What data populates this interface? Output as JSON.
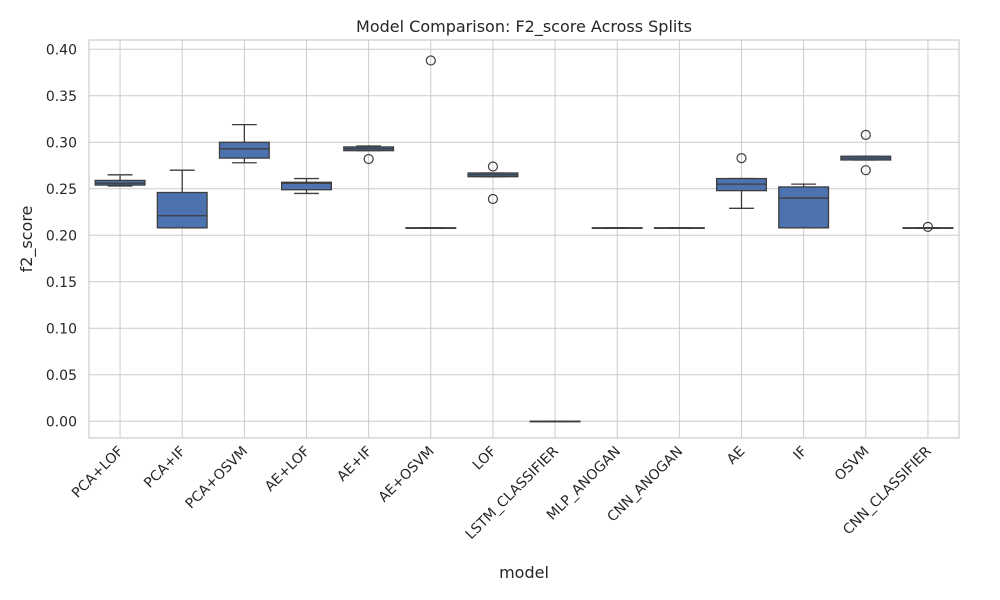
{
  "chart_data": {
    "type": "box",
    "title": "Model Comparison: F2_score Across Splits",
    "xlabel": "model",
    "ylabel": "f2_score",
    "ylim": [
      -0.018,
      0.41
    ],
    "yticks": [
      0.0,
      0.05,
      0.1,
      0.15,
      0.2,
      0.25,
      0.3,
      0.35,
      0.4
    ],
    "ytick_labels": [
      "0.00",
      "0.05",
      "0.10",
      "0.15",
      "0.20",
      "0.25",
      "0.30",
      "0.35",
      "0.40"
    ],
    "grid": true,
    "box_color": "#4c72b0",
    "edge_color": "#3d3d3d",
    "categories": [
      "PCA+LOF",
      "PCA+IF",
      "PCA+OSVM",
      "AE+LOF",
      "AE+IF",
      "AE+OSVM",
      "LOF",
      "LSTM_CLASSIFIER",
      "MLP_ANOGAN",
      "CNN_ANOGAN",
      "AE",
      "IF",
      "OSVM",
      "CNN_CLASSIFIER"
    ],
    "boxes": [
      {
        "q1": 0.254,
        "median": 0.256,
        "q3": 0.259,
        "whisker_low": 0.253,
        "whisker_high": 0.265,
        "outliers": []
      },
      {
        "q1": 0.208,
        "median": 0.221,
        "q3": 0.246,
        "whisker_low": 0.208,
        "whisker_high": 0.27,
        "outliers": []
      },
      {
        "q1": 0.283,
        "median": 0.293,
        "q3": 0.3,
        "whisker_low": 0.278,
        "whisker_high": 0.319,
        "outliers": []
      },
      {
        "q1": 0.249,
        "median": 0.256,
        "q3": 0.257,
        "whisker_low": 0.245,
        "whisker_high": 0.261,
        "outliers": []
      },
      {
        "q1": 0.291,
        "median": 0.293,
        "q3": 0.295,
        "whisker_low": 0.291,
        "whisker_high": 0.296,
        "outliers": [
          0.282
        ]
      },
      {
        "q1": 0.208,
        "median": 0.208,
        "q3": 0.208,
        "whisker_low": 0.208,
        "whisker_high": 0.208,
        "outliers": [
          0.388
        ]
      },
      {
        "q1": 0.263,
        "median": 0.265,
        "q3": 0.267,
        "whisker_low": 0.263,
        "whisker_high": 0.267,
        "outliers": [
          0.274,
          0.239
        ]
      },
      {
        "q1": 0.0,
        "median": 0.0,
        "q3": 0.0,
        "whisker_low": 0.0,
        "whisker_high": 0.0,
        "outliers": []
      },
      {
        "q1": 0.208,
        "median": 0.208,
        "q3": 0.208,
        "whisker_low": 0.208,
        "whisker_high": 0.208,
        "outliers": []
      },
      {
        "q1": 0.208,
        "median": 0.208,
        "q3": 0.208,
        "whisker_low": 0.208,
        "whisker_high": 0.208,
        "outliers": []
      },
      {
        "q1": 0.248,
        "median": 0.255,
        "q3": 0.261,
        "whisker_low": 0.229,
        "whisker_high": 0.261,
        "outliers": [
          0.283
        ]
      },
      {
        "q1": 0.208,
        "median": 0.24,
        "q3": 0.252,
        "whisker_low": 0.208,
        "whisker_high": 0.255,
        "outliers": []
      },
      {
        "q1": 0.281,
        "median": 0.283,
        "q3": 0.285,
        "whisker_low": 0.281,
        "whisker_high": 0.285,
        "outliers": [
          0.308,
          0.27
        ]
      },
      {
        "q1": 0.208,
        "median": 0.208,
        "q3": 0.208,
        "whisker_low": 0.208,
        "whisker_high": 0.208,
        "outliers": [
          0.209
        ]
      }
    ]
  }
}
